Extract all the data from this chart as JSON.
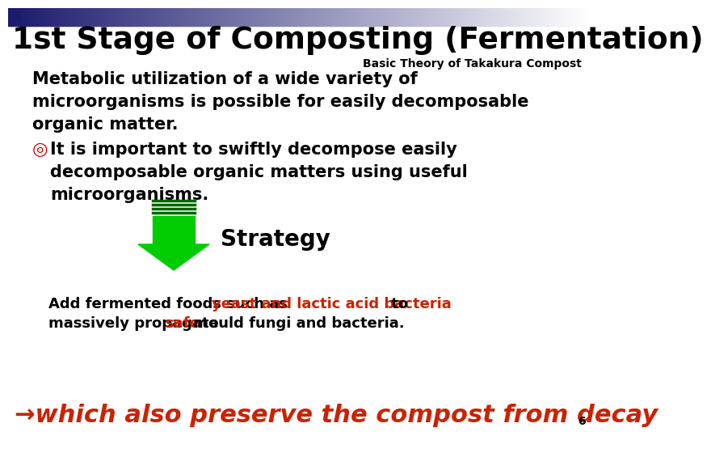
{
  "title": "1st Stage of Composting (Fermentation)",
  "subtitle": "Basic Theory of Takakura Compost",
  "para1_line1": "Metabolic utilization of a wide variety of",
  "para1_line2": "microorganisms is possible for easily decomposable",
  "para1_line3": "organic matter.",
  "bullet_symbol": "◎",
  "bullet_line1": "It is important to swiftly decompose easily",
  "bullet_line2": "decomposable organic matters using useful",
  "bullet_line3": "microorganisms.",
  "strategy_label": "Strategy",
  "add_text_pre": "Add fermented foods such as ",
  "add_text_red": "yeast and lactic acid bacteria",
  "add_text_post": " to",
  "add_text2_pre": "massively propagate ",
  "add_text2_red": "safe",
  "add_text2_post": " mould fungi and bacteria.",
  "bottom_text": "→which also preserve the compost from decay",
  "bottom_number": "6",
  "bg_color": "#ffffff",
  "title_color": "#000000",
  "subtitle_color": "#000000",
  "body_color": "#000000",
  "red_color": "#cc2200",
  "orange_red": "#cc3300",
  "green_color": "#00cc00",
  "dark_green": "#006600",
  "bullet_color": "#cc0000"
}
